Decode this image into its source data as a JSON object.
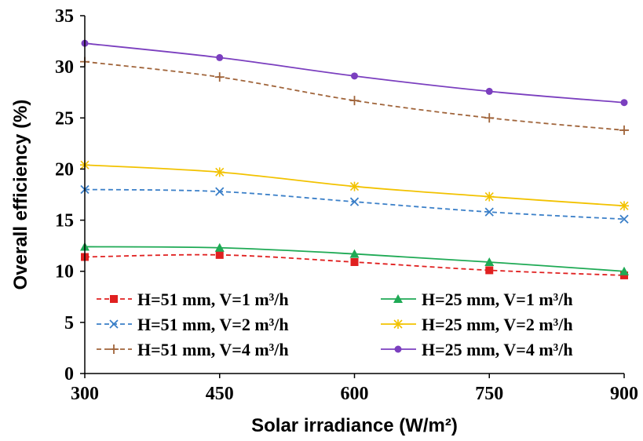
{
  "chart_data": {
    "type": "line",
    "xlabel": "Solar irradiance (W/m²)",
    "ylabel": "Overall efficiency (%)",
    "x": [
      300,
      450,
      600,
      750,
      900
    ],
    "xticks": [
      "300",
      "450",
      "600",
      "750",
      "900"
    ],
    "yticks": [
      "0",
      "5",
      "10",
      "15",
      "20",
      "25",
      "30",
      "35"
    ],
    "xlim": [
      300,
      900
    ],
    "ylim": [
      0,
      35
    ],
    "grid": false,
    "legend_position": "bottom",
    "series": [
      {
        "name": "H=51 mm, V=1 m³/h",
        "values": [
          11.4,
          11.6,
          10.9,
          10.1,
          9.6
        ],
        "color": "#e02020",
        "line": "dashed",
        "marker": "square"
      },
      {
        "name": "H=25 mm, V=1 m³/h",
        "values": [
          12.4,
          12.3,
          11.7,
          10.9,
          10.0
        ],
        "color": "#1faa55",
        "line": "solid",
        "marker": "triangle"
      },
      {
        "name": "H=51 mm, V=2 m³/h",
        "values": [
          18.0,
          17.8,
          16.8,
          15.8,
          15.1
        ],
        "color": "#3a7fc8",
        "line": "dashed",
        "marker": "x"
      },
      {
        "name": "H=25 mm, V=2 m³/h",
        "values": [
          20.4,
          19.7,
          18.3,
          17.3,
          16.4
        ],
        "color": "#f2c200",
        "line": "solid",
        "marker": "star"
      },
      {
        "name": "H=51 mm, V=4 m³/h",
        "values": [
          30.5,
          29.0,
          26.7,
          25.0,
          23.8
        ],
        "color": "#a0643a",
        "line": "dashed",
        "marker": "plus"
      },
      {
        "name": "H=25 mm, V=4 m³/h",
        "values": [
          32.3,
          30.9,
          29.1,
          27.6,
          26.5
        ],
        "color": "#7b3fbf",
        "line": "solid",
        "marker": "circle"
      }
    ]
  }
}
